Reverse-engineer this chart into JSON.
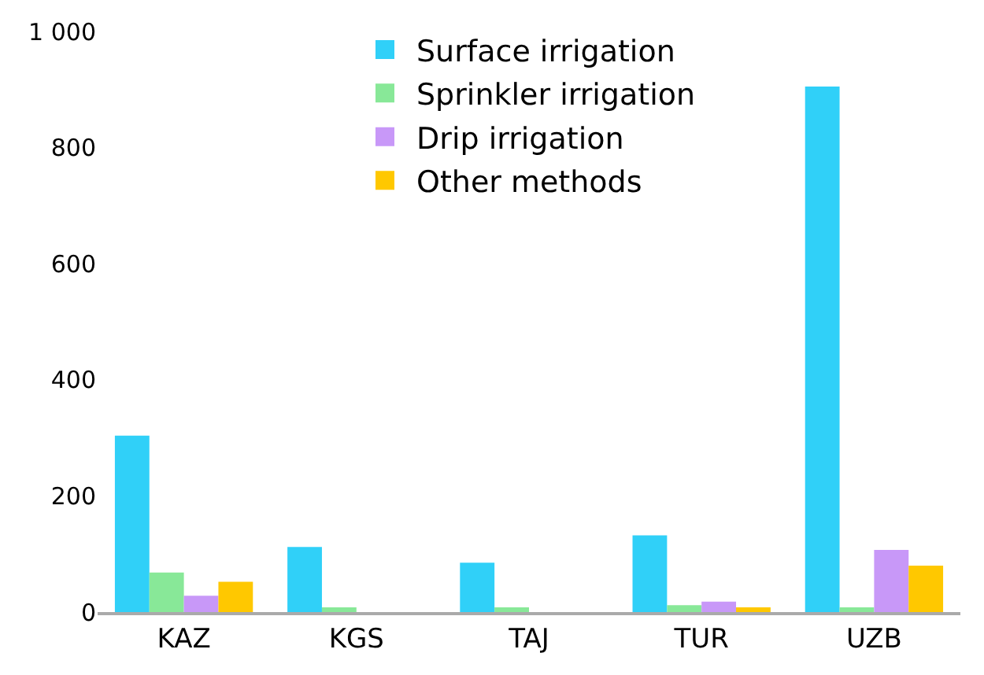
{
  "chart_data": {
    "type": "bar",
    "categories": [
      "KAZ",
      "KGS",
      "TAJ",
      "TUR",
      "UZB"
    ],
    "series": [
      {
        "name": "Surface irrigation",
        "color": "#30d0f8",
        "values": [
          304,
          112,
          85,
          132,
          905
        ]
      },
      {
        "name": "Sprinkler irrigation",
        "color": "#88e898",
        "values": [
          68,
          8,
          8,
          12,
          8
        ]
      },
      {
        "name": "Drip irrigation",
        "color": "#c898f8",
        "values": [
          28,
          0,
          0,
          18,
          107
        ]
      },
      {
        "name": "Other methods",
        "color": "#ffc800",
        "values": [
          52,
          0,
          0,
          8,
          80
        ]
      }
    ],
    "ylim": [
      0,
      1000
    ],
    "yticks": [
      0,
      200,
      400,
      600,
      800,
      {
        "value": 1000,
        "label": "1 000"
      }
    ],
    "legend": "top"
  }
}
